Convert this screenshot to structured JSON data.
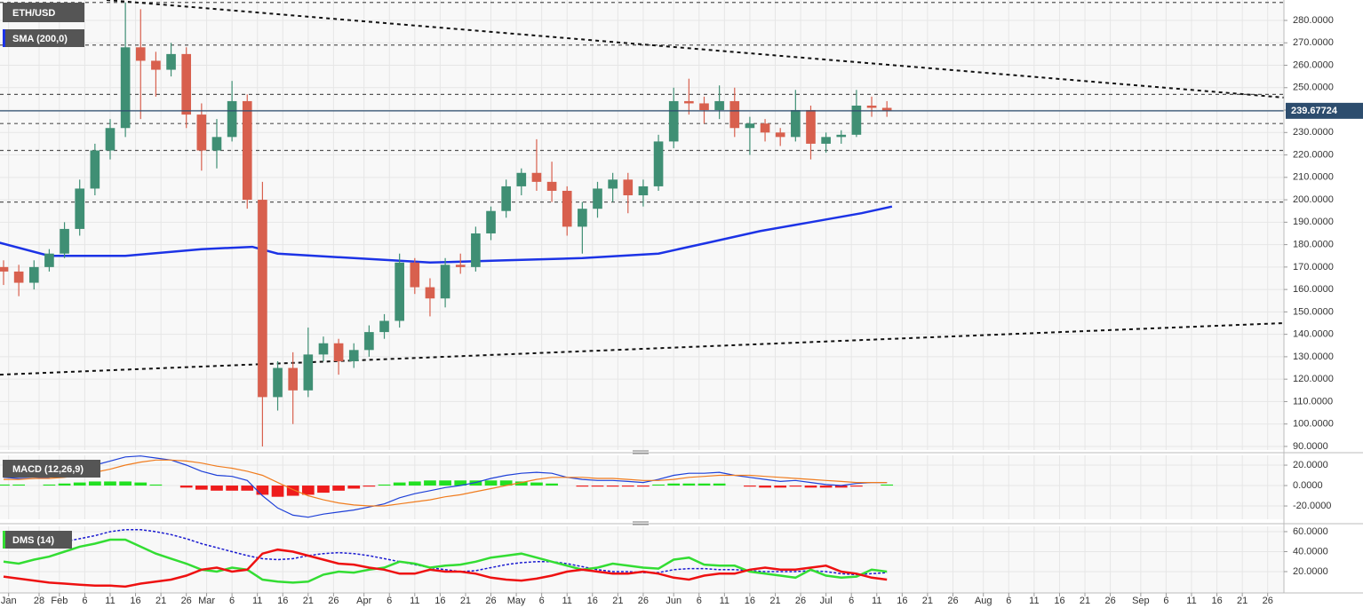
{
  "chart_data": {
    "type": "candlestick",
    "title": "ETH/USD",
    "x": [
      21,
      24,
      27,
      30,
      33,
      36,
      39,
      42,
      45,
      48,
      51,
      54,
      57,
      60,
      63,
      66,
      69,
      72,
      75,
      78,
      81,
      84,
      87,
      90,
      93,
      96,
      99,
      102,
      105,
      108,
      111,
      114,
      117,
      120,
      123,
      126,
      129,
      132,
      135,
      138,
      141,
      144,
      147,
      150,
      153,
      156,
      159,
      162,
      165,
      168,
      171,
      174,
      177,
      180,
      183,
      186,
      189,
      192,
      195
    ],
    "open": [
      170,
      168,
      163,
      170,
      176,
      187,
      205,
      222,
      232,
      268,
      262,
      258,
      265,
      238,
      222,
      228,
      244,
      200,
      112,
      125,
      115,
      131,
      136,
      128,
      133,
      141,
      146,
      172,
      161,
      156,
      171,
      170,
      185,
      195,
      206,
      212,
      208,
      204,
      188,
      196,
      205,
      209,
      202,
      206,
      226,
      244,
      243,
      240,
      244,
      232,
      234,
      230,
      228,
      240,
      225,
      228,
      229,
      242,
      241
    ],
    "high": [
      173,
      171,
      173,
      178,
      190,
      209,
      225,
      236,
      288,
      285,
      266,
      270,
      268,
      243,
      236,
      253,
      247,
      208,
      128,
      132,
      143,
      139,
      138,
      136,
      144,
      149,
      176,
      174,
      165,
      174,
      176,
      188,
      197,
      209,
      214,
      227,
      217,
      206,
      199,
      208,
      212,
      212,
      209,
      229,
      250,
      254,
      246,
      251,
      250,
      237,
      236,
      232,
      249,
      242,
      230,
      231,
      249,
      246,
      244
    ],
    "low": [
      162,
      157,
      160,
      168,
      174,
      184,
      202,
      218,
      228,
      236,
      246,
      255,
      232,
      213,
      214,
      226,
      196,
      90,
      106,
      100,
      112,
      128,
      122,
      125,
      130,
      138,
      143,
      158,
      148,
      152,
      167,
      168,
      182,
      192,
      202,
      204,
      199,
      184,
      176,
      192,
      199,
      194,
      197,
      204,
      223,
      238,
      234,
      236,
      228,
      220,
      226,
      224,
      226,
      218,
      221,
      225,
      228,
      237,
      237
    ],
    "close": [
      168,
      163,
      170,
      176,
      187,
      205,
      222,
      232,
      268,
      262,
      258,
      265,
      238,
      222,
      228,
      244,
      200,
      112,
      125,
      115,
      131,
      136,
      128,
      133,
      141,
      146,
      172,
      161,
      156,
      171,
      170,
      185,
      195,
      206,
      212,
      208,
      204,
      188,
      196,
      205,
      209,
      202,
      206,
      226,
      244,
      243,
      240,
      244,
      232,
      234,
      230,
      228,
      240,
      225,
      228,
      229,
      242,
      241,
      239.68
    ],
    "up_color": "#3f8f74",
    "down_color": "#d8604e",
    "xlim": [
      20.3,
      273.2
    ],
    "xticks": [
      {
        "value": 22,
        "label": "Jan"
      },
      28,
      {
        "value": 32,
        "label": "Feb"
      },
      {
        "value": 37,
        "label": "6"
      },
      {
        "value": 42,
        "label": "11"
      },
      {
        "value": 47,
        "label": "16"
      },
      {
        "value": 52,
        "label": "21"
      },
      {
        "value": 57,
        "label": "26"
      },
      {
        "value": 61,
        "label": "Mar"
      },
      {
        "value": 66,
        "label": "6"
      },
      {
        "value": 71,
        "label": "11"
      },
      {
        "value": 76,
        "label": "16"
      },
      {
        "value": 81,
        "label": "21"
      },
      {
        "value": 86,
        "label": "26"
      },
      {
        "value": 92,
        "label": "Apr"
      },
      {
        "value": 97,
        "label": "6"
      },
      {
        "value": 102,
        "label": "11"
      },
      {
        "value": 107,
        "label": "16"
      },
      {
        "value": 112,
        "label": "21"
      },
      {
        "value": 117,
        "label": "26"
      },
      {
        "value": 122,
        "label": "May"
      },
      {
        "value": 127,
        "label": "6"
      },
      {
        "value": 132,
        "label": "11"
      },
      {
        "value": 137,
        "label": "16"
      },
      {
        "value": 142,
        "label": "21"
      },
      {
        "value": 147,
        "label": "26"
      },
      {
        "value": 153,
        "label": "Jun"
      },
      {
        "value": 158,
        "label": "6"
      },
      {
        "value": 163,
        "label": "11"
      },
      {
        "value": 168,
        "label": "16"
      },
      {
        "value": 173,
        "label": "21"
      },
      {
        "value": 178,
        "label": "26"
      },
      {
        "value": 183,
        "label": "Jul"
      },
      {
        "value": 188,
        "label": "6"
      },
      {
        "value": 193,
        "label": "11"
      },
      {
        "value": 198,
        "label": "16"
      },
      {
        "value": 203,
        "label": "21"
      },
      {
        "value": 208,
        "label": "26"
      },
      {
        "value": 214,
        "label": "Aug"
      },
      {
        "value": 219,
        "label": "6"
      },
      {
        "value": 224,
        "label": "11"
      },
      {
        "value": 229,
        "label": "16"
      },
      {
        "value": 234,
        "label": "21"
      },
      {
        "value": 239,
        "label": "26"
      },
      {
        "value": 245,
        "label": "Sep"
      },
      {
        "value": 250,
        "label": "6"
      },
      {
        "value": 255,
        "label": "11"
      },
      {
        "value": 260,
        "label": "16"
      },
      {
        "value": 265,
        "label": "21"
      },
      {
        "value": 270,
        "label": "26"
      }
    ],
    "ylim": [
      88.4,
      289.1
    ],
    "yticks": [
      {
        "value": 90,
        "label": "90.0000"
      },
      {
        "value": 100,
        "label": "100.0000"
      },
      {
        "value": 110,
        "label": "110.0000"
      },
      {
        "value": 120,
        "label": "120.0000"
      },
      {
        "value": 130,
        "label": "130.0000"
      },
      {
        "value": 140,
        "label": "140.0000"
      },
      {
        "value": 150,
        "label": "150.0000"
      },
      {
        "value": 160,
        "label": "160.0000"
      },
      {
        "value": 170,
        "label": "170.0000"
      },
      {
        "value": 180,
        "label": "180.0000"
      },
      {
        "value": 190,
        "label": "190.0000"
      },
      {
        "value": 200,
        "label": "200.0000"
      },
      {
        "value": 210,
        "label": "210.0000"
      },
      {
        "value": 220,
        "label": "220.0000"
      },
      {
        "value": 230,
        "label": "230.0000"
      },
      {
        "value": 240,
        "label": "240.0000"
      },
      {
        "value": 250,
        "label": "250.0000"
      },
      {
        "value": 260,
        "label": "260.0000"
      },
      {
        "value": 270,
        "label": "270.0000"
      },
      {
        "value": 280,
        "label": "280.0000"
      }
    ],
    "grid": true,
    "series": [
      {
        "name": "SMA (200,0)",
        "color": "#1c33e6",
        "x": [
          20,
          30,
          45,
          60,
          70,
          75,
          90,
          105,
          120,
          135,
          150,
          160,
          170,
          180,
          190,
          196
        ],
        "values": [
          181,
          175,
          175,
          178,
          179,
          176,
          174,
          172,
          173,
          174,
          176,
          181,
          186,
          190,
          194,
          197
        ]
      }
    ],
    "levels": [
      288,
      269,
      247,
      234,
      222,
      199
    ],
    "trend_lines": [
      {
        "x": [
          41.3,
          273.2
        ],
        "values": [
          289.1,
          245.6
        ]
      },
      {
        "x": [
          20.3,
          273.2
        ],
        "values": [
          122,
          145
        ]
      }
    ],
    "last_price": 239.67724,
    "last_price_color": "#2d4d6e",
    "indicators": [
      {
        "type": "macd",
        "title": "MACD (12,26,9)",
        "ylim": [
          -33,
          29.6
        ],
        "yticks": [
          {
            "value": -20,
            "label": "-20.0000"
          },
          {
            "value": 0,
            "label": "0.0000"
          },
          {
            "value": 20,
            "label": "20.0000"
          }
        ],
        "histogram": [
          1,
          1,
          0,
          1,
          2,
          3,
          4,
          4,
          4,
          3,
          1,
          0,
          -2,
          -4,
          -5,
          -5,
          -5,
          -9,
          -11,
          -10,
          -9,
          -7,
          -5,
          -3,
          -1,
          1,
          3,
          4,
          5,
          5,
          5,
          5,
          5,
          5,
          4,
          3,
          2,
          0,
          -1,
          -1,
          -1,
          -1,
          -1,
          1,
          2,
          2,
          2,
          2,
          0,
          -1,
          -2,
          -2,
          -1,
          -2,
          -2,
          -2,
          -1,
          0,
          1
        ],
        "histogram_colors": [
          "#22e022",
          "#ee1c1c"
        ],
        "series": [
          {
            "color": "#1e40d8",
            "values": [
              8,
              7,
              7,
              8,
              12,
              16,
              20,
              24,
              28,
              29,
              27,
              25,
              20,
              14,
              10,
              9,
              5,
              -10,
              -22,
              -29,
              -31,
              -28,
              -26,
              -24,
              -21,
              -18,
              -12,
              -8,
              -5,
              -2,
              0,
              3,
              7,
              10,
              12,
              13,
              12,
              8,
              6,
              5,
              5,
              4,
              3,
              6,
              10,
              12,
              12,
              13,
              10,
              8,
              6,
              4,
              5,
              3,
              1,
              0,
              2,
              3,
              3
            ]
          },
          {
            "color": "#f07c1e",
            "values": [
              6,
              6,
              7,
              7,
              8,
              10,
              13,
              16,
              20,
              23,
              25,
              25,
              24,
              22,
              19,
              17,
              14,
              10,
              3,
              -4,
              -10,
              -14,
              -17,
              -19,
              -20,
              -20,
              -18,
              -16,
              -14,
              -11,
              -9,
              -6,
              -3,
              0,
              3,
              6,
              8,
              8,
              8,
              7,
              7,
              6,
              5,
              5,
              6,
              8,
              9,
              10,
              10,
              10,
              9,
              8,
              7,
              6,
              5,
              4,
              3,
              3,
              3
            ]
          }
        ]
      },
      {
        "type": "line",
        "title": "DMS (14)",
        "ylim": [
          -1.3,
          65.3
        ],
        "yticks": [
          {
            "value": 20,
            "label": "20.0000"
          },
          {
            "value": 40,
            "label": "40.0000"
          },
          {
            "value": 60,
            "label": "60.0000"
          }
        ],
        "series": [
          {
            "color": "#1a1ad0",
            "dashed": true,
            "values": [
              44,
              45,
              46,
              47,
              50,
              53,
              56,
              60,
              62,
              62,
              60,
              57,
              53,
              48,
              44,
              40,
              36,
              33,
              32,
              33,
              36,
              38,
              39,
              38,
              36,
              33,
              30,
              27,
              24,
              22,
              20,
              21,
              24,
              27,
              29,
              30,
              30,
              28,
              25,
              22,
              20,
              20,
              19,
              19,
              22,
              23,
              23,
              22,
              22,
              21,
              20,
              20,
              20,
              21,
              20,
              18,
              17,
              18,
              19
            ]
          },
          {
            "color": "#33dd33",
            "values": [
              30,
              28,
              32,
              35,
              40,
              45,
              48,
              52,
              52,
              45,
              38,
              33,
              28,
              22,
              20,
              24,
              22,
              12,
              10,
              9,
              10,
              17,
              20,
              19,
              22,
              24,
              30,
              28,
              24,
              26,
              27,
              30,
              34,
              36,
              38,
              34,
              30,
              26,
              22,
              24,
              28,
              26,
              24,
              23,
              32,
              34,
              27,
              26,
              26,
              20,
              18,
              16,
              14,
              22,
              16,
              14,
              15,
              22,
              20
            ]
          },
          {
            "color": "#ee1111",
            "values": [
              15,
              13,
              11,
              9,
              8,
              7,
              6,
              6,
              5,
              8,
              10,
              12,
              16,
              22,
              24,
              20,
              22,
              38,
              42,
              40,
              36,
              32,
              28,
              27,
              24,
              22,
              18,
              18,
              22,
              20,
              20,
              18,
              14,
              12,
              11,
              13,
              16,
              20,
              22,
              20,
              18,
              18,
              20,
              18,
              14,
              12,
              16,
              18,
              18,
              22,
              24,
              22,
              22,
              24,
              26,
              20,
              18,
              14,
              12
            ]
          }
        ]
      }
    ]
  }
}
